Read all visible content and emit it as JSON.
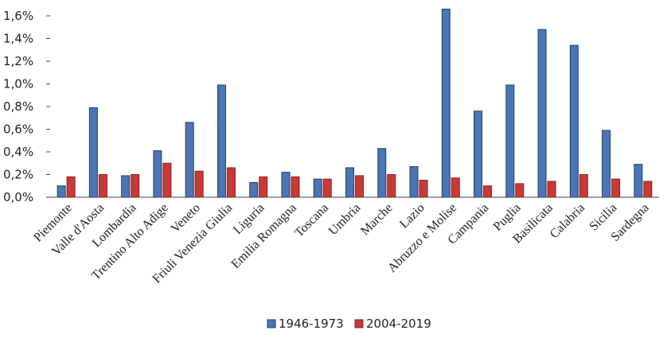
{
  "chart_data": {
    "type": "bar",
    "categories": [
      "Piemonte",
      "Valle d'Aosta",
      "Lombardia",
      "Trentino Alto Adige",
      "Veneto",
      "Friuli Venezia Giulia",
      "Liguria",
      "Emilia Romagna",
      "Toscana",
      "Umbria",
      "Marche",
      "Lazio",
      "Abruzzo e Molise",
      "Campania",
      "Puglia",
      "Basilicata",
      "Calabria",
      "Sicilia",
      "Sardegna"
    ],
    "series": [
      {
        "name": "1946-1973",
        "color": "#4a76b5",
        "border": "#1f3e6e",
        "values": [
          0.1,
          0.79,
          0.19,
          0.41,
          0.66,
          0.99,
          0.13,
          0.22,
          0.16,
          0.26,
          0.43,
          0.27,
          1.66,
          0.76,
          0.99,
          1.48,
          1.34,
          0.59,
          0.29
        ]
      },
      {
        "name": "2004-2019",
        "color": "#c83a36",
        "border": "#8e1f1c",
        "values": [
          0.18,
          0.2,
          0.2,
          0.3,
          0.23,
          0.26,
          0.18,
          0.18,
          0.16,
          0.19,
          0.2,
          0.15,
          0.17,
          0.1,
          0.12,
          0.14,
          0.2,
          0.16,
          0.14
        ]
      }
    ],
    "ylim": [
      0,
      1.6
    ],
    "yticks": [
      "0,0%",
      "0,2%",
      "0,4%",
      "0,6%",
      "0,8%",
      "1,0%",
      "1,2%",
      "1,4%",
      "1,6%"
    ],
    "ytick_values": [
      0,
      0.2,
      0.4,
      0.6,
      0.8,
      1.0,
      1.2,
      1.4,
      1.6
    ],
    "legend_position": "bottom",
    "grid": false
  }
}
